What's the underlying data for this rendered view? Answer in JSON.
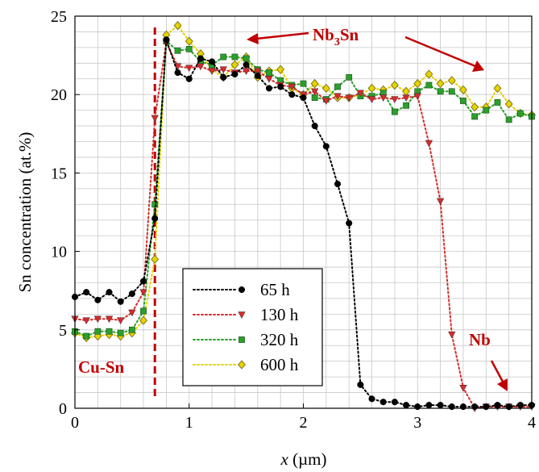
{
  "chart_data": {
    "type": "scatter",
    "xlabel_var": "x",
    "xlabel_unit": "(µm)",
    "ylabel": "Sn concentration (at.%)",
    "xlim": [
      0,
      4
    ],
    "ylim": [
      0,
      25
    ],
    "xticks": [
      "0",
      "1",
      "2",
      "3",
      "4"
    ],
    "yticks": [
      "0",
      "5",
      "10",
      "15",
      "20",
      "25"
    ],
    "grid": true,
    "legend_position": "bottom-left-center",
    "interface_line_x": 0.7,
    "annotations": {
      "nb3sn": "Nb3Sn",
      "nb": "Nb",
      "cusn": "Cu-Sn"
    },
    "colors": {
      "annotation": "#c00000",
      "interface_line": "#c00000"
    },
    "series": [
      {
        "name": "65 h",
        "color": "#000000",
        "marker": "circle",
        "x": [
          0.0,
          0.1,
          0.2,
          0.3,
          0.4,
          0.5,
          0.6,
          0.7,
          0.8,
          0.9,
          1.0,
          1.1,
          1.2,
          1.3,
          1.4,
          1.5,
          1.6,
          1.7,
          1.8,
          1.9,
          2.0,
          2.1,
          2.2,
          2.3,
          2.4,
          2.5,
          2.6,
          2.7,
          2.8,
          2.9,
          3.0,
          3.1,
          3.2,
          3.3,
          3.4,
          3.5,
          3.6,
          3.7,
          3.8,
          3.9,
          4.0
        ],
        "y": [
          7.1,
          7.4,
          6.9,
          7.4,
          6.8,
          7.3,
          8.1,
          12.1,
          23.5,
          21.4,
          21.0,
          22.3,
          22.1,
          21.1,
          21.3,
          21.9,
          21.2,
          20.4,
          20.5,
          20.0,
          19.8,
          18.0,
          16.7,
          14.3,
          11.8,
          1.5,
          0.6,
          0.4,
          0.4,
          0.2,
          0.1,
          0.2,
          0.2,
          0.1,
          0.1,
          0.1,
          0.1,
          0.2,
          0.1,
          0.2,
          0.2
        ]
      },
      {
        "name": "130 h",
        "color": "#d62a2a",
        "marker": "triangle-down",
        "x": [
          0.0,
          0.1,
          0.2,
          0.3,
          0.4,
          0.5,
          0.6,
          0.7,
          0.8,
          0.9,
          1.0,
          1.1,
          1.2,
          1.3,
          1.4,
          1.5,
          1.6,
          1.7,
          1.8,
          1.9,
          2.0,
          2.1,
          2.2,
          2.3,
          2.4,
          2.5,
          2.6,
          2.7,
          2.8,
          2.9,
          3.0,
          3.1,
          3.2,
          3.3,
          3.4,
          3.5,
          3.6,
          3.7,
          3.8,
          3.9,
          4.0
        ],
        "y": [
          5.7,
          5.6,
          5.7,
          5.7,
          5.6,
          6.1,
          7.4,
          18.5,
          23.3,
          21.8,
          21.7,
          21.8,
          21.5,
          21.6,
          21.4,
          21.5,
          21.5,
          21.0,
          20.6,
          20.5,
          20.0,
          20.2,
          19.6,
          19.9,
          19.8,
          20.1,
          19.7,
          19.8,
          19.7,
          19.8,
          19.9,
          16.9,
          13.2,
          4.7,
          1.3,
          0.0,
          0.1,
          0.1,
          0.1,
          0.1,
          0.1
        ]
      },
      {
        "name": "320 h",
        "color": "#2aa02a",
        "marker": "square",
        "x": [
          0.0,
          0.1,
          0.2,
          0.3,
          0.4,
          0.5,
          0.6,
          0.7,
          0.8,
          0.9,
          1.0,
          1.1,
          1.2,
          1.3,
          1.4,
          1.5,
          1.6,
          1.7,
          1.8,
          1.9,
          2.0,
          2.1,
          2.2,
          2.3,
          2.4,
          2.5,
          2.6,
          2.7,
          2.8,
          2.9,
          3.0,
          3.1,
          3.2,
          3.3,
          3.4,
          3.5,
          3.6,
          3.7,
          3.8,
          3.9,
          4.0
        ],
        "y": [
          4.9,
          4.6,
          4.9,
          4.9,
          4.8,
          5.0,
          6.2,
          13.0,
          23.4,
          22.8,
          22.9,
          22.1,
          21.9,
          22.4,
          22.4,
          22.3,
          21.6,
          21.4,
          20.9,
          20.6,
          20.7,
          19.8,
          19.7,
          20.5,
          21.1,
          19.9,
          19.9,
          20.1,
          18.9,
          19.3,
          20.2,
          20.6,
          20.2,
          20.2,
          19.6,
          18.6,
          19.0,
          19.5,
          18.4,
          18.8,
          18.6
        ]
      },
      {
        "name": "600 h",
        "color": "#e6d200",
        "marker": "diamond",
        "x": [
          0.0,
          0.1,
          0.2,
          0.3,
          0.4,
          0.5,
          0.6,
          0.7,
          0.8,
          0.9,
          1.0,
          1.1,
          1.2,
          1.3,
          1.4,
          1.5,
          1.6,
          1.7,
          1.8,
          1.9,
          2.0,
          2.1,
          2.2,
          2.3,
          2.4,
          2.5,
          2.6,
          2.7,
          2.8,
          2.9,
          3.0,
          3.1,
          3.2,
          3.3,
          3.4,
          3.5,
          3.6,
          3.7,
          3.8,
          3.9,
          4.0
        ],
        "y": [
          4.8,
          4.5,
          4.6,
          4.7,
          4.6,
          4.8,
          5.6,
          9.5,
          23.8,
          24.4,
          23.4,
          22.6,
          21.6,
          21.1,
          21.9,
          22.4,
          21.1,
          21.5,
          21.6,
          20.4,
          20.0,
          20.7,
          20.4,
          19.8,
          19.8,
          20.0,
          20.4,
          20.3,
          20.6,
          20.2,
          20.7,
          21.3,
          20.7,
          20.9,
          20.3,
          19.2,
          19.2,
          20.4,
          19.4,
          18.8,
          18.7
        ]
      }
    ]
  }
}
